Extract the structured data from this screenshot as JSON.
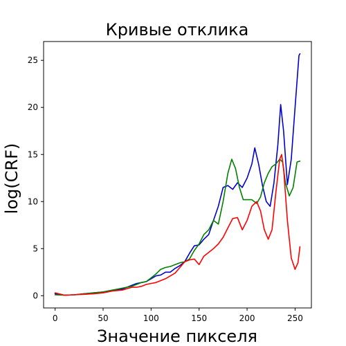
{
  "chart_data": {
    "type": "line",
    "title": "Кривые отклика",
    "xlabel": "Значение пикселя",
    "ylabel": "log(CRF)",
    "xlim": [
      -12,
      267
    ],
    "ylim": [
      -1.3,
      27
    ],
    "xticks": [
      0,
      50,
      100,
      150,
      200,
      250
    ],
    "yticks": [
      0,
      5,
      10,
      15,
      20,
      25
    ],
    "grid": false,
    "series": [
      {
        "color": "#0000cc",
        "points": [
          [
            0,
            0.2
          ],
          [
            10,
            0.05
          ],
          [
            20,
            0.1
          ],
          [
            30,
            0.2
          ],
          [
            40,
            0.3
          ],
          [
            50,
            0.4
          ],
          [
            60,
            0.6
          ],
          [
            70,
            0.7
          ],
          [
            80,
            1.1
          ],
          [
            85,
            1.3
          ],
          [
            90,
            1.4
          ],
          [
            95,
            1.5
          ],
          [
            100,
            1.8
          ],
          [
            105,
            2.1
          ],
          [
            110,
            2.2
          ],
          [
            115,
            2.5
          ],
          [
            120,
            2.5
          ],
          [
            125,
            2.9
          ],
          [
            130,
            3.2
          ],
          [
            135,
            3.6
          ],
          [
            140,
            4.5
          ],
          [
            145,
            5.3
          ],
          [
            150,
            5.4
          ],
          [
            155,
            6.0
          ],
          [
            160,
            6.5
          ],
          [
            165,
            8.0
          ],
          [
            170,
            9.5
          ],
          [
            175,
            11.5
          ],
          [
            180,
            11.7
          ],
          [
            185,
            11.3
          ],
          [
            190,
            12.0
          ],
          [
            195,
            11.5
          ],
          [
            200,
            12.5
          ],
          [
            205,
            14.0
          ],
          [
            208,
            15.7
          ],
          [
            212,
            14.0
          ],
          [
            216,
            11.7
          ],
          [
            220,
            10.0
          ],
          [
            224,
            9.5
          ],
          [
            228,
            12.0
          ],
          [
            232,
            16.0
          ],
          [
            235,
            20.3
          ],
          [
            238,
            17.5
          ],
          [
            242,
            11.8
          ],
          [
            246,
            14.5
          ],
          [
            250,
            20.0
          ],
          [
            254,
            25.5
          ],
          [
            255,
            25.7
          ]
        ]
      },
      {
        "color": "#008000",
        "points": [
          [
            0,
            0.1
          ],
          [
            10,
            0.05
          ],
          [
            20,
            0.1
          ],
          [
            30,
            0.2
          ],
          [
            40,
            0.3
          ],
          [
            50,
            0.4
          ],
          [
            60,
            0.6
          ],
          [
            70,
            0.8
          ],
          [
            80,
            1.0
          ],
          [
            85,
            1.2
          ],
          [
            90,
            1.4
          ],
          [
            95,
            1.5
          ],
          [
            100,
            1.9
          ],
          [
            105,
            2.3
          ],
          [
            110,
            2.8
          ],
          [
            115,
            3.0
          ],
          [
            120,
            3.1
          ],
          [
            125,
            3.3
          ],
          [
            130,
            3.5
          ],
          [
            135,
            3.6
          ],
          [
            140,
            3.9
          ],
          [
            145,
            4.8
          ],
          [
            150,
            5.5
          ],
          [
            155,
            6.5
          ],
          [
            160,
            7.0
          ],
          [
            165,
            8.0
          ],
          [
            170,
            7.6
          ],
          [
            175,
            10.0
          ],
          [
            180,
            13.0
          ],
          [
            184,
            14.5
          ],
          [
            188,
            13.5
          ],
          [
            192,
            11.5
          ],
          [
            196,
            10.2
          ],
          [
            200,
            10.2
          ],
          [
            205,
            10.2
          ],
          [
            210,
            9.8
          ],
          [
            214,
            10.5
          ],
          [
            218,
            12.0
          ],
          [
            222,
            13.0
          ],
          [
            226,
            13.7
          ],
          [
            230,
            14.0
          ],
          [
            234,
            14.5
          ],
          [
            237,
            14.2
          ],
          [
            240,
            12.0
          ],
          [
            244,
            10.6
          ],
          [
            248,
            11.5
          ],
          [
            252,
            14.2
          ],
          [
            255,
            14.3
          ]
        ]
      },
      {
        "color": "#ff0000",
        "points": [
          [
            0,
            0.3
          ],
          [
            10,
            0.05
          ],
          [
            20,
            0.1
          ],
          [
            30,
            0.15
          ],
          [
            40,
            0.2
          ],
          [
            50,
            0.3
          ],
          [
            60,
            0.5
          ],
          [
            70,
            0.6
          ],
          [
            80,
            0.9
          ],
          [
            85,
            0.9
          ],
          [
            90,
            1.0
          ],
          [
            95,
            1.2
          ],
          [
            100,
            1.3
          ],
          [
            105,
            1.4
          ],
          [
            110,
            1.6
          ],
          [
            115,
            1.8
          ],
          [
            120,
            2.1
          ],
          [
            125,
            2.4
          ],
          [
            130,
            3.0
          ],
          [
            135,
            3.6
          ],
          [
            140,
            3.8
          ],
          [
            145,
            3.9
          ],
          [
            150,
            3.3
          ],
          [
            155,
            4.2
          ],
          [
            160,
            4.6
          ],
          [
            165,
            5.0
          ],
          [
            170,
            5.5
          ],
          [
            175,
            6.2
          ],
          [
            180,
            7.2
          ],
          [
            185,
            8.2
          ],
          [
            190,
            8.3
          ],
          [
            195,
            7.0
          ],
          [
            200,
            8.0
          ],
          [
            205,
            9.5
          ],
          [
            210,
            10.0
          ],
          [
            214,
            9.0
          ],
          [
            218,
            7.0
          ],
          [
            222,
            6.0
          ],
          [
            226,
            7.0
          ],
          [
            230,
            11.0
          ],
          [
            234,
            14.5
          ],
          [
            236,
            15.0
          ],
          [
            238,
            13.5
          ],
          [
            242,
            8.0
          ],
          [
            246,
            4.0
          ],
          [
            250,
            2.8
          ],
          [
            253,
            3.5
          ],
          [
            255,
            5.2
          ]
        ]
      }
    ]
  }
}
